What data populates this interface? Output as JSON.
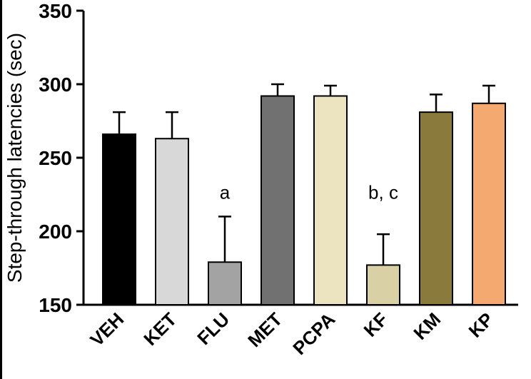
{
  "chart_data": {
    "type": "bar",
    "title": "",
    "xlabel": "",
    "ylabel": "Step-through latencies (sec)",
    "ylim": [
      150,
      350
    ],
    "yticks": [
      150,
      200,
      250,
      300,
      350
    ],
    "grid": false,
    "legend": null,
    "categories": [
      "VEH",
      "KET",
      "FLU",
      "MET",
      "PCPA",
      "KF",
      "KM",
      "KP"
    ],
    "values": [
      266,
      263,
      179,
      292,
      292,
      177,
      281,
      287
    ],
    "errors_upper": [
      15,
      18,
      31,
      8,
      7,
      21,
      12,
      12
    ],
    "bar_colors": [
      "#000000",
      "#d8d8d8",
      "#a3a3a3",
      "#717171",
      "#ece4c1",
      "#d9d0a6",
      "#8a7b3c",
      "#f4a970"
    ],
    "axis_color": "#000000",
    "annotations": [
      {
        "category_index": 2,
        "text": "a"
      },
      {
        "category_index": 5,
        "text": "b, c"
      }
    ]
  }
}
